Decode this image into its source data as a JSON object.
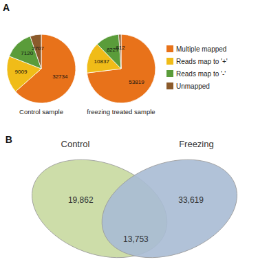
{
  "chart_data": [
    {
      "type": "pie",
      "title": "Control sample",
      "categories": [
        "Multiple mapped",
        "Reads map to '+'",
        "Reads map to '-'",
        "Unmapped"
      ],
      "values": [
        32734,
        9009,
        7120,
        2707
      ],
      "colors": [
        "#E8721A",
        "#F0BC18",
        "#5A9C3A",
        "#8B5A2B"
      ],
      "data_labels": true,
      "annotations": [
        "A"
      ]
    },
    {
      "type": "pie",
      "title": "freezing treated sample",
      "categories": [
        "Multiple mapped",
        "Reads map to '+'",
        "Reads map to '-'",
        "Unmapped"
      ],
      "values": [
        53819,
        10837,
        8227,
        812
      ],
      "colors": [
        "#E8721A",
        "#F0BC18",
        "#5A9C3A",
        "#8B5A2B"
      ],
      "data_labels": true,
      "legend": "right"
    },
    {
      "type": "venn",
      "series": [
        {
          "name": "Control",
          "color": "#C8D9A0",
          "values": [
            19862
          ],
          "value_labels": [
            "19,862"
          ]
        },
        {
          "name": "Freezing",
          "color": "#A8BBD4",
          "values": [
            33619
          ],
          "value_labels": [
            "33,619"
          ]
        }
      ],
      "overlap": {
        "values": [
          13753
        ],
        "value_labels": [
          "13,753"
        ]
      },
      "data_labels": true,
      "annotations": [
        "B"
      ]
    }
  ]
}
